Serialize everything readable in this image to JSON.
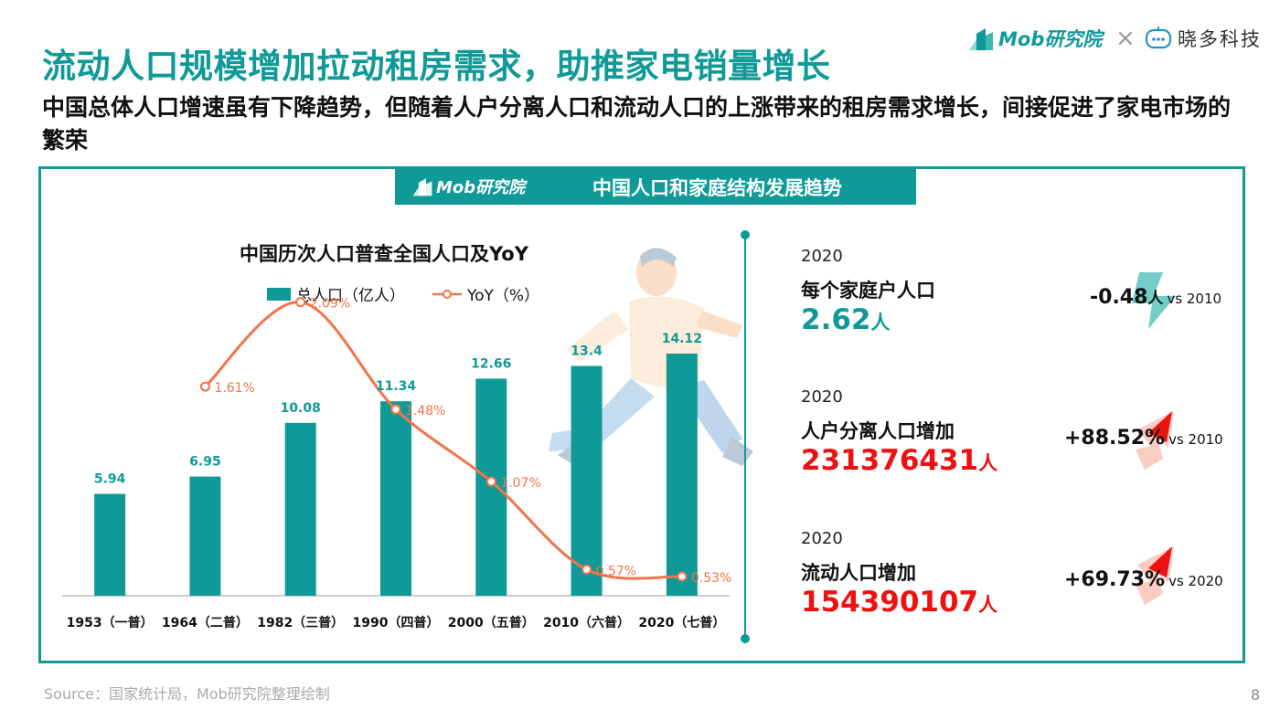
{
  "header": {
    "title": "流动人口规模增加拉动租房需求，助推家电销量增长",
    "subtitle": "中国总体人口增速虽有下降趋势，但随着人户分离人口和流动人口的上涨带来的租房需求增长，间接促进了家电市场的繁荣",
    "brand_mob": "Mob研究院",
    "brand_x": "×",
    "brand_xd": "晓多科技"
  },
  "banner": {
    "logo": "Mob研究院",
    "title": "中国人口和家庭结构发展趋势"
  },
  "chart_data": {
    "type": "bar",
    "title": "中国历次人口普查全国人口及YoY",
    "categories": [
      "1953（一普）",
      "1964（二普）",
      "1982（三普）",
      "1990（四普）",
      "2000（五普）",
      "2010（六普）",
      "2020（七普）"
    ],
    "series": [
      {
        "name": "总人口（亿人）",
        "type": "bar",
        "values": [
          5.94,
          6.95,
          10.08,
          11.34,
          12.66,
          13.4,
          14.12
        ],
        "labels": [
          "5.94",
          "6.95",
          "10.08",
          "11.34",
          "12.66",
          "13.4",
          "14.12"
        ],
        "color": "#0f9a98"
      },
      {
        "name": "YoY（%）",
        "type": "line",
        "values": [
          null,
          1.61,
          2.09,
          1.48,
          1.07,
          0.57,
          0.53
        ],
        "labels": [
          "",
          "1.61%",
          "2.09%",
          "1.48%",
          "1.07%",
          "0.57%",
          "0.53%"
        ],
        "color": "#f2744a"
      }
    ],
    "legend_position": "top",
    "grid": false
  },
  "stats": [
    {
      "year": "2020",
      "label": "每个家庭户人口",
      "value": "2.62",
      "unit": "人",
      "change": "-0.48",
      "change_unit": "人",
      "vs": "vs 2010",
      "color": "#0f9a98",
      "direction": "down"
    },
    {
      "year": "2020",
      "label": "人户分离人口增加",
      "value": "231376431",
      "unit": "人",
      "change": "+88.52%",
      "change_unit": "",
      "vs": "vs 2010",
      "color": "#ee1111",
      "direction": "up"
    },
    {
      "year": "2020",
      "label": "流动人口增加",
      "value": "154390107",
      "unit": "人",
      "change": "+69.73%",
      "change_unit": "",
      "vs": "vs 2020",
      "color": "#ee1111",
      "direction": "up"
    }
  ],
  "footer": {
    "source": "Source：国家统计局，Mob研究院整理绘制",
    "page": "8"
  }
}
